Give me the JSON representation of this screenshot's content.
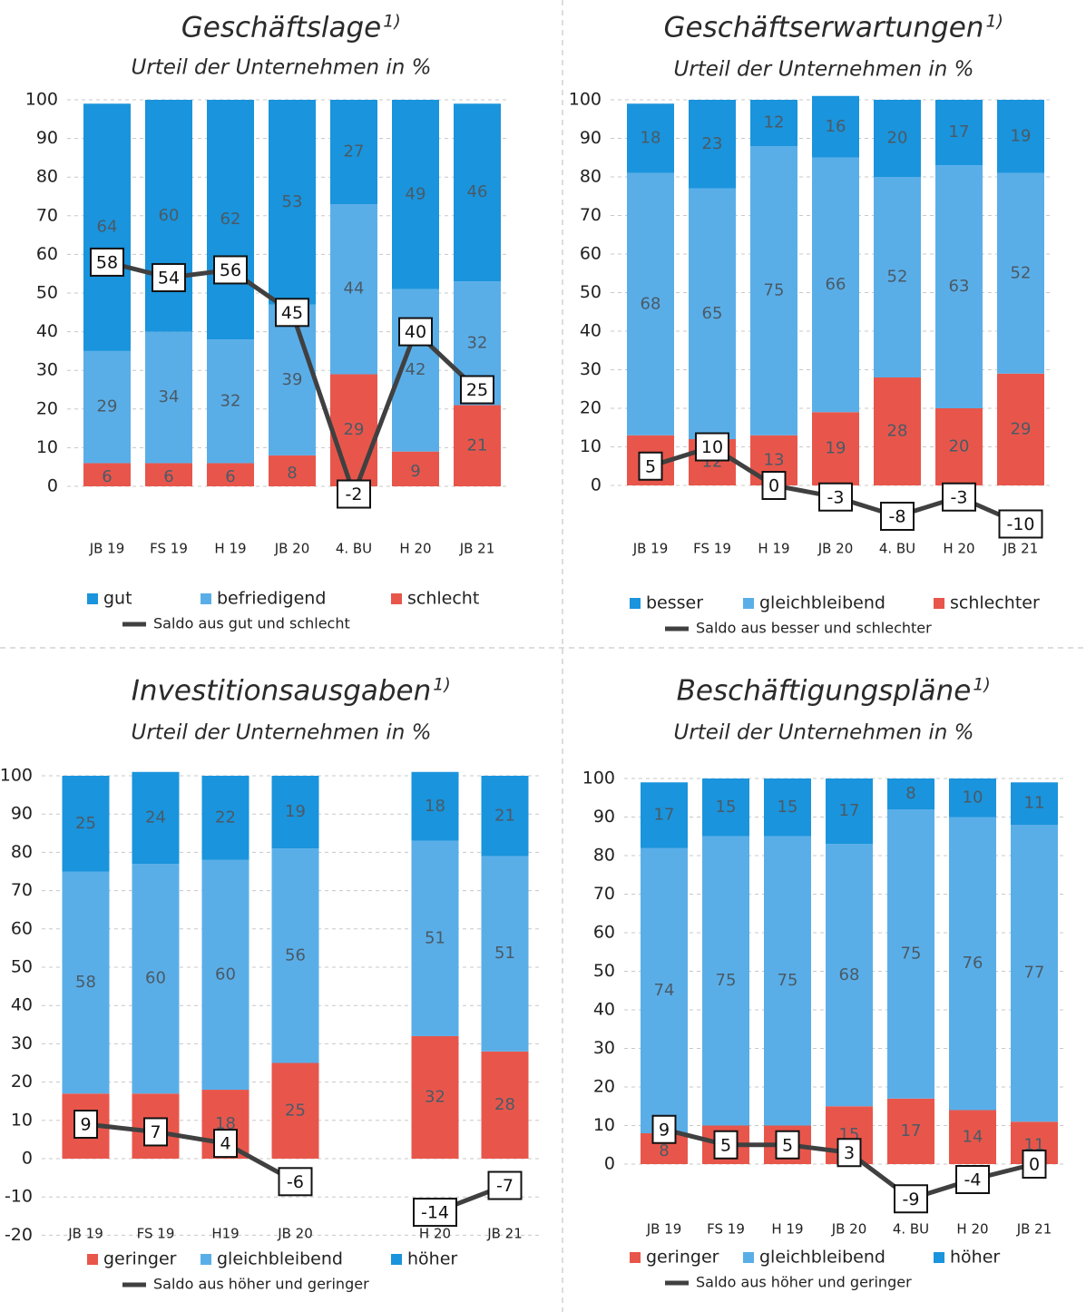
{
  "chart_data": [
    {
      "type": "bar",
      "stacked": true,
      "title": "Geschäftslage",
      "title_footnote": "1)",
      "subtitle": "Urteil der Unternehmen in %",
      "categories": [
        "JB 19",
        "FS 19",
        "H 19",
        "JB 20",
        "4. BU",
        "H 20",
        "JB 21"
      ],
      "ylim": [
        -10,
        100
      ],
      "yticks": [
        0,
        10,
        20,
        30,
        40,
        50,
        60,
        70,
        80,
        90,
        100
      ],
      "grid": true,
      "legend_reversed": true,
      "series": [
        {
          "name": "schlecht",
          "color": "#e8564b",
          "values": [
            6,
            6,
            6,
            8,
            29,
            9,
            21
          ]
        },
        {
          "name": "befriedigend",
          "color": "#5aaee8",
          "values": [
            29,
            34,
            32,
            39,
            44,
            42,
            32
          ]
        },
        {
          "name": "gut",
          "color": "#1a94dc",
          "values": [
            64,
            60,
            62,
            53,
            27,
            49,
            46
          ]
        },
        {
          "name": "Saldo aus gut und schlecht",
          "type": "line",
          "color": "#404040",
          "values": [
            58,
            54,
            56,
            45,
            -2,
            40,
            25
          ]
        }
      ]
    },
    {
      "type": "bar",
      "stacked": true,
      "title": "Geschäftserwartungen",
      "title_footnote": "1)",
      "subtitle": "Urteil der Unternehmen in %",
      "categories": [
        "JB 19",
        "FS 19",
        "H 19",
        "JB 20",
        "4. BU",
        "H 20",
        "JB 21"
      ],
      "ylim": [
        -10,
        100
      ],
      "yticks": [
        0,
        10,
        20,
        30,
        40,
        50,
        60,
        70,
        80,
        90,
        100
      ],
      "grid": true,
      "legend_reversed": true,
      "series": [
        {
          "name": "schlechter",
          "color": "#e8564b",
          "values": [
            13,
            12,
            13,
            19,
            28,
            20,
            29
          ]
        },
        {
          "name": "gleichbleibend",
          "color": "#5aaee8",
          "values": [
            68,
            65,
            75,
            66,
            52,
            63,
            52
          ]
        },
        {
          "name": "besser",
          "color": "#1a94dc",
          "values": [
            18,
            23,
            12,
            16,
            20,
            17,
            19
          ]
        },
        {
          "name": "Saldo aus besser und schlechter",
          "type": "line",
          "color": "#404040",
          "values": [
            5,
            10,
            0,
            -3,
            -8,
            -3,
            -10
          ]
        }
      ]
    },
    {
      "type": "bar",
      "stacked": true,
      "title": "Investitionsausgaben",
      "title_footnote": "1)",
      "subtitle": "Urteil der Unternehmen in %",
      "categories": [
        "JB 19",
        "FS 19",
        "H19",
        "JB 20",
        null,
        "H 20",
        "JB 21"
      ],
      "ylim": [
        -20,
        100
      ],
      "yticks": [
        -20,
        -10,
        0,
        10,
        20,
        30,
        40,
        50,
        60,
        70,
        80,
        90,
        100
      ],
      "grid": true,
      "legend_reversed": false,
      "series": [
        {
          "name": "geringer",
          "color": "#e8564b",
          "values": [
            17,
            17,
            18,
            25,
            null,
            32,
            28
          ]
        },
        {
          "name": "gleichbleibend",
          "color": "#5aaee8",
          "values": [
            58,
            60,
            60,
            56,
            null,
            51,
            51
          ]
        },
        {
          "name": "höher",
          "color": "#1a94dc",
          "values": [
            25,
            24,
            22,
            19,
            null,
            18,
            21
          ]
        },
        {
          "name": "Saldo aus höher und geringer",
          "type": "line",
          "color": "#404040",
          "values": [
            9,
            7,
            4,
            -6,
            null,
            -14,
            -7
          ]
        }
      ]
    },
    {
      "type": "bar",
      "stacked": true,
      "title": "Beschäftigungspläne",
      "title_footnote": "1)",
      "subtitle": "Urteil der Unternehmen in %",
      "categories": [
        "JB 19",
        "FS 19",
        "H 19",
        "JB 20",
        "4. BU",
        "H 20",
        "JB 21"
      ],
      "ylim": [
        -10,
        100
      ],
      "yticks": [
        0,
        10,
        20,
        30,
        40,
        50,
        60,
        70,
        80,
        90,
        100
      ],
      "grid": true,
      "legend_reversed": false,
      "series": [
        {
          "name": "geringer",
          "color": "#e8564b",
          "values": [
            8,
            10,
            10,
            15,
            17,
            14,
            11
          ]
        },
        {
          "name": "gleichbleibend",
          "color": "#5aaee8",
          "values": [
            74,
            75,
            75,
            68,
            75,
            76,
            77
          ]
        },
        {
          "name": "höher",
          "color": "#1a94dc",
          "values": [
            17,
            15,
            15,
            17,
            8,
            10,
            11
          ]
        },
        {
          "name": "Saldo aus höher und geringer",
          "type": "line",
          "color": "#404040",
          "values": [
            9,
            5,
            5,
            3,
            -9,
            -4,
            0
          ]
        }
      ]
    }
  ]
}
